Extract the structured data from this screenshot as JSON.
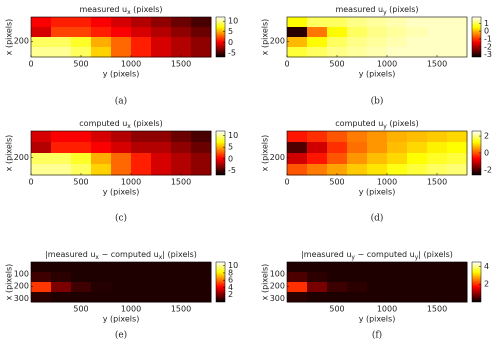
{
  "chart_data": [
    {
      "type": "heatmap",
      "caption": "(a)",
      "title": [
        {
          "text": "measured u"
        },
        {
          "text": "x",
          "sub": true
        },
        {
          "text": " (pixels)"
        }
      ],
      "xlabel": "y (pixels)",
      "ylabel": "x (pixels)",
      "xlim": [
        0,
        1800
      ],
      "ylim": [
        0,
        330
      ],
      "y_reversed": true,
      "xticks": [
        0,
        500,
        1000,
        1500
      ],
      "yticks": [
        200
      ],
      "colormap": "hot",
      "clim": [
        -7,
        12
      ],
      "colorbar_ticks": [
        10,
        5,
        0,
        -5
      ],
      "z": [
        [
          0,
          1,
          1,
          0,
          -1,
          -2,
          -3,
          -4,
          -5
        ],
        [
          -1,
          2,
          2,
          1,
          0,
          -1,
          -2,
          -3,
          -4
        ],
        [
          9,
          9,
          8,
          5,
          3,
          1,
          -1,
          -2,
          -3
        ],
        [
          10,
          10,
          9,
          6,
          3,
          1,
          -1,
          -2,
          -3
        ]
      ]
    },
    {
      "type": "heatmap",
      "caption": "(b)",
      "title": [
        {
          "text": "measured u"
        },
        {
          "text": "y",
          "sub": true
        },
        {
          "text": " (pixels)"
        }
      ],
      "xlabel": "y (pixels)",
      "ylabel": "x (pixels)",
      "xlim": [
        0,
        1800
      ],
      "ylim": [
        0,
        330
      ],
      "y_reversed": true,
      "xticks": [
        0,
        500,
        1000,
        1500
      ],
      "yticks": [
        200
      ],
      "colormap": "hot",
      "clim": [
        -3.3,
        1.8
      ],
      "colorbar_ticks": [
        1,
        0,
        -1,
        -2,
        -3
      ],
      "z": [
        [
          0.5,
          1,
          1,
          1.2,
          1.3,
          1.4,
          1.5,
          1.5,
          1.5
        ],
        [
          -3,
          -0.5,
          0.5,
          1,
          1.2,
          1.3,
          1.4,
          1.5,
          1.5
        ],
        [
          0,
          0.5,
          1,
          1.2,
          1.3,
          1.4,
          1.5,
          1.5,
          1.5
        ],
        [
          0.8,
          1,
          1.2,
          1.3,
          1.4,
          1.5,
          1.5,
          1.5,
          1.5
        ]
      ]
    },
    {
      "type": "heatmap",
      "caption": "(c)",
      "title": [
        {
          "text": "computed u"
        },
        {
          "text": "x",
          "sub": true
        },
        {
          "text": " (pixels)"
        }
      ],
      "xlabel": "y (pixels)",
      "ylabel": "x (pixels)",
      "xlim": [
        0,
        1800
      ],
      "ylim": [
        0,
        330
      ],
      "y_reversed": true,
      "xticks": [
        0,
        500,
        1000,
        1500
      ],
      "yticks": [
        200
      ],
      "colormap": "hot",
      "clim": [
        -7,
        12
      ],
      "colorbar_ticks": [
        10,
        5,
        0,
        -5
      ],
      "z": [
        [
          -1,
          0,
          0,
          -1,
          -2,
          -3,
          -3,
          -4,
          -5
        ],
        [
          -2,
          1,
          1,
          0,
          -1,
          -2,
          -2,
          -3,
          -4
        ],
        [
          9,
          9,
          8,
          5,
          3,
          1,
          -1,
          -2,
          -3
        ],
        [
          10,
          10,
          9,
          6,
          3,
          1,
          -1,
          -2,
          -3
        ]
      ]
    },
    {
      "type": "heatmap",
      "caption": "(d)",
      "title": [
        {
          "text": "computed u"
        },
        {
          "text": "y",
          "sub": true
        },
        {
          "text": " (pixels)"
        }
      ],
      "xlabel": "y (pixels)",
      "ylabel": "x (pixels)",
      "xlim": [
        0,
        1800
      ],
      "ylim": [
        0,
        330
      ],
      "y_reversed": true,
      "xticks": [
        0,
        500,
        1000,
        1500
      ],
      "yticks": [
        200
      ],
      "colormap": "hot",
      "clim": [
        -2.6,
        2.6
      ],
      "colorbar_ticks": [
        2,
        0,
        -2
      ],
      "z": [
        [
          -0.5,
          -0.3,
          0,
          0.3,
          0.5,
          0.7,
          0.8,
          0.9,
          1
        ],
        [
          -2,
          -1,
          -0.3,
          0.2,
          0.5,
          0.8,
          1,
          1.2,
          1.3
        ],
        [
          -1,
          -0.5,
          0,
          0.5,
          0.8,
          1,
          1.3,
          1.5,
          1.6
        ],
        [
          0,
          0.3,
          0.6,
          0.9,
          1.1,
          1.4,
          1.6,
          1.8,
          1.9
        ]
      ]
    },
    {
      "type": "heatmap",
      "caption": "(e)",
      "title": [
        {
          "text": "|measured u"
        },
        {
          "text": "x",
          "sub": true
        },
        {
          "text": " − computed u"
        },
        {
          "text": "x",
          "sub": true
        },
        {
          "text": "| (pixels)"
        }
      ],
      "xlabel": "y (pixels)",
      "ylabel": "x (pixels)",
      "xlim": [
        0,
        1800
      ],
      "ylim": [
        0,
        330
      ],
      "y_reversed": true,
      "xticks": [
        500,
        1000,
        1500
      ],
      "yticks": [
        100,
        200,
        300
      ],
      "colormap": "hot",
      "clim": [
        0,
        11
      ],
      "colorbar_ticks": [
        10,
        8,
        6,
        4,
        2
      ],
      "z": [
        [
          0.5,
          0.5,
          0.5,
          0.5,
          0.5,
          0.5,
          0.5,
          0.5,
          0.5
        ],
        [
          1,
          0.7,
          0.5,
          0.5,
          0.5,
          0.5,
          0.5,
          0.5,
          0.5
        ],
        [
          5,
          2,
          1,
          0.6,
          0.5,
          0.5,
          0.5,
          0.5,
          0.5
        ],
        [
          0.7,
          0.5,
          0.5,
          0.5,
          0.5,
          0.5,
          0.5,
          0.5,
          0.5
        ]
      ]
    },
    {
      "type": "heatmap",
      "caption": "(f)",
      "title": [
        {
          "text": "|measured u"
        },
        {
          "text": "y",
          "sub": true
        },
        {
          "text": " − computed u"
        },
        {
          "text": "y",
          "sub": true
        },
        {
          "text": "| (pixels)"
        }
      ],
      "xlabel": "y (pixels)",
      "ylabel": "x (pixels)",
      "xlim": [
        0,
        1800
      ],
      "ylim": [
        0,
        330
      ],
      "y_reversed": true,
      "xticks": [
        500,
        1000,
        1500
      ],
      "yticks": [
        100,
        200,
        300
      ],
      "colormap": "hot",
      "clim": [
        0,
        4.5
      ],
      "colorbar_ticks": [
        4,
        2
      ],
      "z": [
        [
          0.2,
          0.2,
          0.2,
          0.2,
          0.2,
          0.2,
          0.2,
          0.2,
          0.2
        ],
        [
          0.5,
          0.3,
          0.2,
          0.2,
          0.2,
          0.2,
          0.2,
          0.2,
          0.2
        ],
        [
          2,
          0.8,
          0.4,
          0.3,
          0.2,
          0.2,
          0.2,
          0.2,
          0.2
        ],
        [
          0.3,
          0.2,
          0.2,
          0.2,
          0.2,
          0.2,
          0.2,
          0.2,
          0.2
        ]
      ]
    }
  ]
}
